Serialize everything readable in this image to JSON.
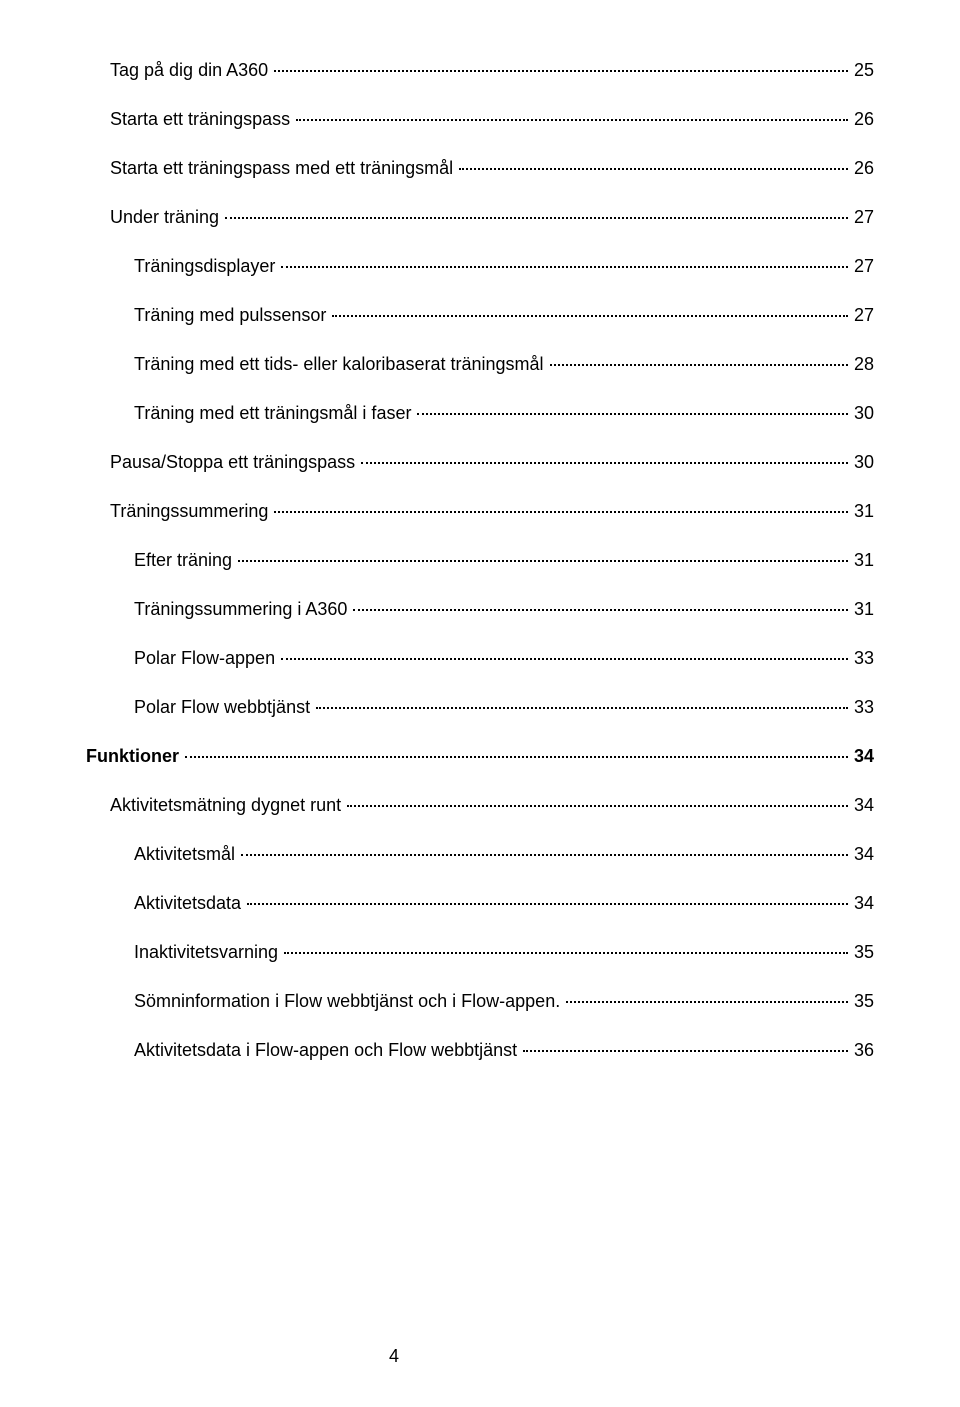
{
  "page_number": "4",
  "toc": [
    {
      "label": "Tag på dig din A360",
      "page": "25",
      "indent": 1,
      "bold": false
    },
    {
      "label": "Starta ett träningspass",
      "page": "26",
      "indent": 1,
      "bold": false
    },
    {
      "label": "Starta ett träningspass med ett träningsmål",
      "page": "26",
      "indent": 1,
      "bold": false
    },
    {
      "label": "Under träning",
      "page": "27",
      "indent": 1,
      "bold": false
    },
    {
      "label": "Träningsdisplayer",
      "page": "27",
      "indent": 2,
      "bold": false
    },
    {
      "label": "Träning med pulssensor",
      "page": "27",
      "indent": 2,
      "bold": false
    },
    {
      "label": "Träning med ett tids- eller kaloribaserat träningsmål",
      "page": "28",
      "indent": 2,
      "bold": false
    },
    {
      "label": "Träning med ett träningsmål i faser",
      "page": "30",
      "indent": 2,
      "bold": false
    },
    {
      "label": "Pausa/Stoppa ett träningspass",
      "page": "30",
      "indent": 1,
      "bold": false
    },
    {
      "label": "Träningssummering",
      "page": "31",
      "indent": 1,
      "bold": false
    },
    {
      "label": "Efter träning",
      "page": "31",
      "indent": 2,
      "bold": false
    },
    {
      "label": "Träningssummering i A360",
      "page": "31",
      "indent": 2,
      "bold": false
    },
    {
      "label": "Polar Flow-appen",
      "page": "33",
      "indent": 2,
      "bold": false
    },
    {
      "label": "Polar Flow webbtjänst",
      "page": "33",
      "indent": 2,
      "bold": false
    },
    {
      "label": "Funktioner",
      "page": "34",
      "indent": 0,
      "bold": true
    },
    {
      "label": "Aktivitetsmätning dygnet runt",
      "page": "34",
      "indent": 1,
      "bold": false
    },
    {
      "label": "Aktivitetsmål",
      "page": "34",
      "indent": 2,
      "bold": false
    },
    {
      "label": "Aktivitetsdata",
      "page": "34",
      "indent": 2,
      "bold": false
    },
    {
      "label": "Inaktivitetsvarning",
      "page": "35",
      "indent": 2,
      "bold": false
    },
    {
      "label": "Sömninformation i Flow webbtjänst och i Flow-appen.",
      "page": "35",
      "indent": 2,
      "bold": false
    },
    {
      "label": "Aktivitetsdata i Flow-appen och Flow webbtjänst",
      "page": "36",
      "indent": 2,
      "bold": false
    }
  ]
}
